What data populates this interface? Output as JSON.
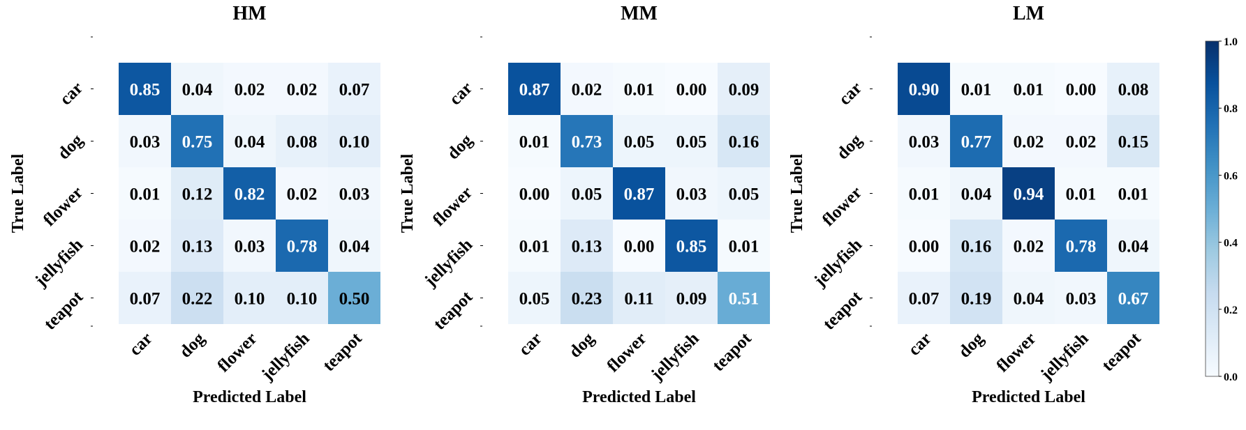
{
  "chart_data": [
    {
      "type": "heatmap",
      "title": "HM",
      "xlabel": "Predicted Label",
      "ylabel": "True Label",
      "x_categories": [
        "car",
        "dog",
        "flower",
        "jellyfish",
        "teapot"
      ],
      "y_categories": [
        "car",
        "dog",
        "flower",
        "jellyfish",
        "teapot"
      ],
      "values": [
        [
          0.85,
          0.04,
          0.02,
          0.02,
          0.07
        ],
        [
          0.03,
          0.75,
          0.04,
          0.08,
          0.1
        ],
        [
          0.01,
          0.12,
          0.82,
          0.02,
          0.03
        ],
        [
          0.02,
          0.13,
          0.03,
          0.78,
          0.04
        ],
        [
          0.07,
          0.22,
          0.1,
          0.1,
          0.5
        ]
      ],
      "value_labels": [
        [
          "0.85",
          "0.04",
          "0.02",
          "0.02",
          "0.07"
        ],
        [
          "0.03",
          "0.75",
          "0.04",
          "0.08",
          "0.10"
        ],
        [
          "0.01",
          "0.12",
          "0.82",
          "0.02",
          "0.03"
        ],
        [
          "0.02",
          "0.13",
          "0.03",
          "0.78",
          "0.04"
        ],
        [
          "0.07",
          "0.22",
          "0.10",
          "0.10",
          "0.50"
        ]
      ]
    },
    {
      "type": "heatmap",
      "title": "MM",
      "xlabel": "Predicted Label",
      "ylabel": "True Label",
      "x_categories": [
        "car",
        "dog",
        "flower",
        "jellyfish",
        "teapot"
      ],
      "y_categories": [
        "car",
        "dog",
        "flower",
        "jellyfish",
        "teapot"
      ],
      "values": [
        [
          0.87,
          0.02,
          0.01,
          0.0,
          0.09
        ],
        [
          0.01,
          0.73,
          0.05,
          0.05,
          0.16
        ],
        [
          0.0,
          0.05,
          0.87,
          0.03,
          0.05
        ],
        [
          0.01,
          0.13,
          0.0,
          0.85,
          0.01
        ],
        [
          0.05,
          0.23,
          0.11,
          0.09,
          0.51
        ]
      ],
      "value_labels": [
        [
          "0.87",
          "0.02",
          "0.01",
          "0.00",
          "0.09"
        ],
        [
          "0.01",
          "0.73",
          "0.05",
          "0.05",
          "0.16"
        ],
        [
          "0.00",
          "0.05",
          "0.87",
          "0.03",
          "0.05"
        ],
        [
          "0.01",
          "0.13",
          "0.00",
          "0.85",
          "0.01"
        ],
        [
          "0.05",
          "0.23",
          "0.11",
          "0.09",
          "0.51"
        ]
      ]
    },
    {
      "type": "heatmap",
      "title": "LM",
      "xlabel": "Predicted Label",
      "ylabel": "True Label",
      "x_categories": [
        "car",
        "dog",
        "flower",
        "jellyfish",
        "teapot"
      ],
      "y_categories": [
        "car",
        "dog",
        "flower",
        "jellyfish",
        "teapot"
      ],
      "values": [
        [
          0.9,
          0.01,
          0.01,
          0.0,
          0.08
        ],
        [
          0.03,
          0.77,
          0.02,
          0.02,
          0.15
        ],
        [
          0.01,
          0.04,
          0.94,
          0.01,
          0.01
        ],
        [
          0.0,
          0.16,
          0.02,
          0.78,
          0.04
        ],
        [
          0.07,
          0.19,
          0.04,
          0.03,
          0.67
        ]
      ],
      "value_labels": [
        [
          "0.90",
          "0.01",
          "0.01",
          "0.00",
          "0.08"
        ],
        [
          "0.03",
          "0.77",
          "0.02",
          "0.02",
          "0.15"
        ],
        [
          "0.01",
          "0.04",
          "0.94",
          "0.01",
          "0.01"
        ],
        [
          "0.00",
          "0.16",
          "0.02",
          "0.78",
          "0.04"
        ],
        [
          "0.07",
          "0.19",
          "0.04",
          "0.03",
          "0.67"
        ]
      ]
    }
  ],
  "colorbar": {
    "colormap": "Blues",
    "range": [
      0.0,
      1.0
    ],
    "ticks": [
      0.0,
      0.2,
      0.4,
      0.6,
      0.8,
      1.0
    ],
    "tick_labels": [
      "0.0",
      "0.2",
      "0.4",
      "0.6",
      "0.8",
      "1.0"
    ]
  }
}
